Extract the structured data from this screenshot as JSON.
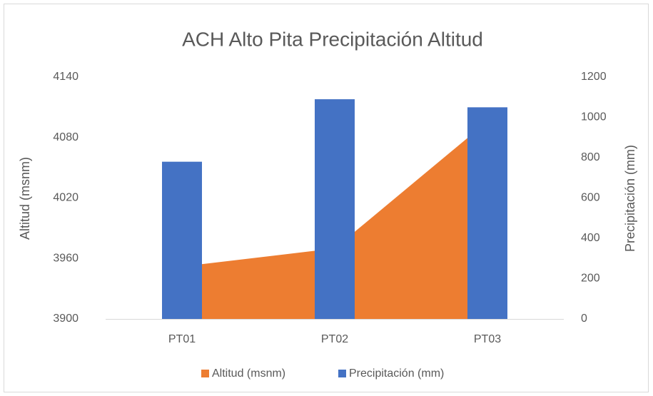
{
  "chart_data": {
    "type": "combo",
    "title": "ACH Alto Pita Precipitación Altitud",
    "categories": [
      "PT01",
      "PT02",
      "PT03"
    ],
    "y_label": "Altitud (msnm)",
    "y2_label": "Precipitación (mm)",
    "ylim": [
      3900,
      4140
    ],
    "yticks": [
      3900,
      3960,
      4020,
      4080,
      4140
    ],
    "y2lim": [
      0,
      1200
    ],
    "y2ticks": [
      0,
      200,
      400,
      600,
      800,
      1000,
      1200
    ],
    "grid": false,
    "legend": "bottom",
    "series": [
      {
        "name": "Altitud (msnm)",
        "type": "area",
        "color": "#ed7d31",
        "values": [
          3952,
          3970,
          4096
        ]
      },
      {
        "name": "Precipitación (mm)",
        "type": "bar",
        "color": "#4472c4",
        "axis": "y2",
        "values": [
          780,
          1090,
          1050
        ]
      }
    ]
  }
}
